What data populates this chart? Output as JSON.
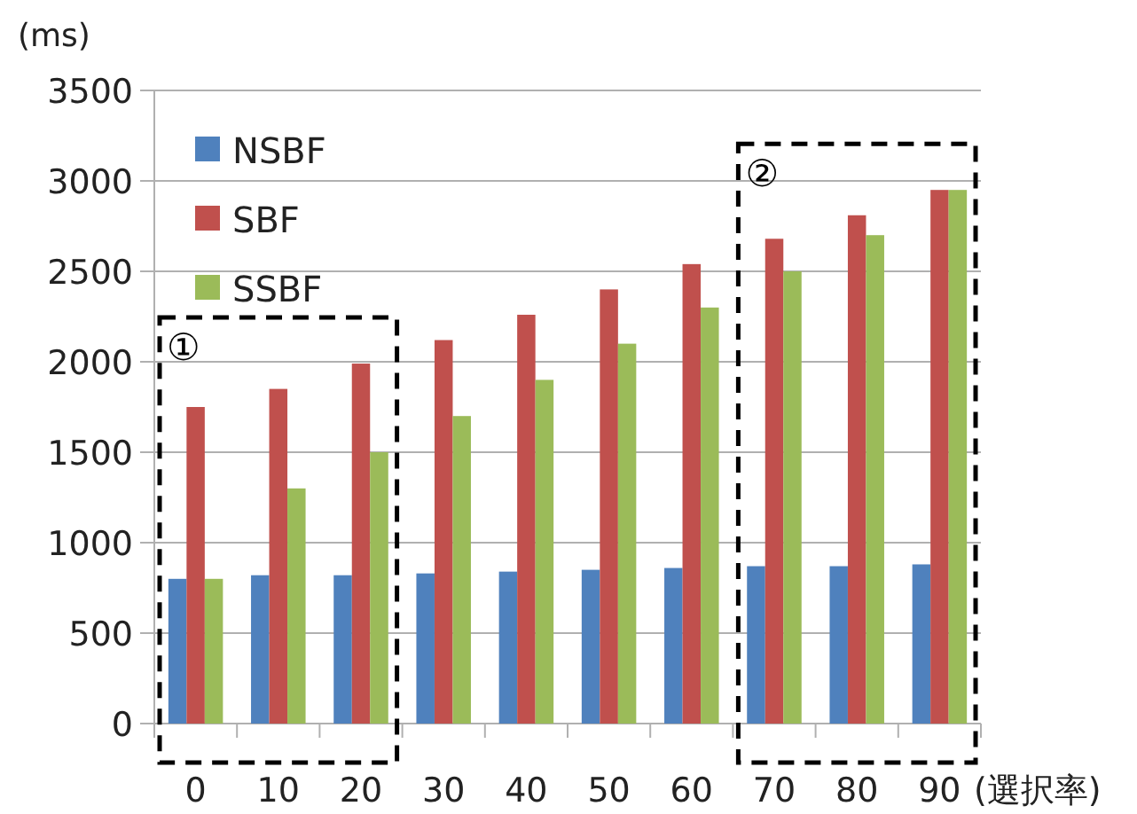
{
  "chart_data": {
    "type": "bar",
    "ylabel": "(ms)",
    "xlabel": "(選択率)",
    "categories": [
      "0",
      "10",
      "20",
      "30",
      "40",
      "50",
      "60",
      "70",
      "80",
      "90"
    ],
    "series": [
      {
        "name": "NSBF",
        "color": "#4f81bd",
        "values": [
          800,
          820,
          820,
          830,
          840,
          850,
          860,
          870,
          870,
          880
        ]
      },
      {
        "name": "SBF",
        "color": "#c0504d",
        "values": [
          1750,
          1850,
          1990,
          2120,
          2260,
          2400,
          2540,
          2680,
          2810,
          2950
        ]
      },
      {
        "name": "SSBF",
        "color": "#9bbb59",
        "values": [
          800,
          1300,
          1500,
          1700,
          1900,
          2100,
          2300,
          2500,
          2700,
          2950
        ]
      }
    ],
    "ylim": [
      0,
      3500
    ],
    "yticks": [
      0,
      500,
      1000,
      1500,
      2000,
      2500,
      3000,
      3500
    ],
    "grid": "y",
    "legend": "top left",
    "annotations": [
      "①",
      "②"
    ]
  }
}
